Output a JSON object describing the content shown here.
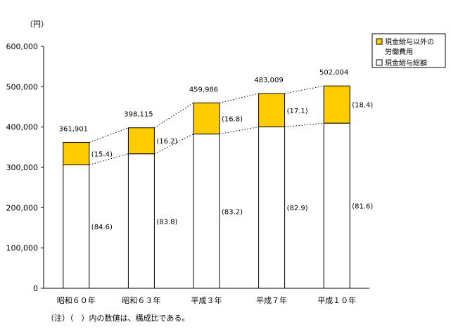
{
  "chart_data": {
    "type": "bar",
    "stacked": true,
    "unit_label": "（円）",
    "categories": [
      "昭和６０年",
      "昭和６３年",
      "平成３年",
      "平成７年",
      "平成１０年"
    ],
    "series": [
      {
        "name": "現金給与総額",
        "values": [
          306174,
          333620,
          382708,
          400414,
          409635
        ],
        "color": "#ffffff",
        "pct_labels": [
          "(84.6)",
          "(83.8)",
          "(83.2)",
          "(82.9)",
          "(81.6)"
        ]
      },
      {
        "name": "現金給与以外の労働費用",
        "values": [
          55727,
          64495,
          77278,
          82595,
          92369
        ],
        "color": "#ffcc00",
        "pct_labels": [
          "(15.4)",
          "(16.2)",
          "(16.8)",
          "(17.1)",
          "(18.4)"
        ]
      }
    ],
    "totals": [
      "361,901",
      "398,115",
      "459,986",
      "483,009",
      "502,004"
    ],
    "total_values": [
      361901,
      398115,
      459986,
      483009,
      502004
    ],
    "ylim": [
      0,
      600000
    ],
    "yticks": [
      "0",
      "100,000",
      "200,000",
      "300,000",
      "400,000",
      "500,000",
      "600,000"
    ],
    "legend": {
      "position": "top-right",
      "entries": [
        {
          "lines": [
            "現金給与以外の",
            "労働費用"
          ],
          "color": "#ffcc00"
        },
        {
          "lines": [
            "現金給与総額"
          ],
          "color": "#ffffff"
        }
      ]
    },
    "connector_lines": "dotted",
    "note": "（注）（　）内の数値は、構成比である。"
  }
}
